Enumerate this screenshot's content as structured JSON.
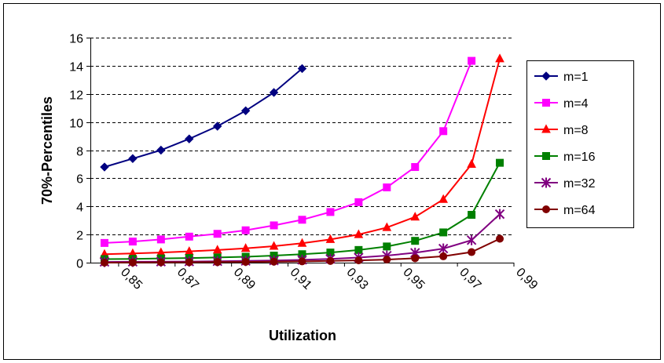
{
  "chart_data": {
    "type": "line",
    "title": "",
    "xlabel": "Utilization",
    "ylabel": "70%-Percentiles",
    "x": [
      0.845,
      0.855,
      0.865,
      0.875,
      0.885,
      0.895,
      0.905,
      0.915,
      0.925,
      0.935,
      0.945,
      0.955,
      0.965,
      0.975,
      0.985
    ],
    "x_tick_values": [
      0.85,
      0.87,
      0.89,
      0.91,
      0.93,
      0.95,
      0.97,
      0.99
    ],
    "x_tick_labels": [
      "0,85",
      "0,87",
      "0,89",
      "0,91",
      "0,93",
      "0,95",
      "0,97",
      "0,99"
    ],
    "xlim": [
      0.84,
      0.99
    ],
    "ylim": [
      0,
      16
    ],
    "y_ticks": [
      0,
      2,
      4,
      6,
      8,
      10,
      12,
      14,
      16
    ],
    "grid": "horizontal dashed",
    "legend_position": "right",
    "series": [
      {
        "name": "m=1",
        "color": "#000080",
        "marker": "diamond",
        "values": [
          6.8,
          7.4,
          8.0,
          8.8,
          9.7,
          10.8,
          12.1,
          13.8,
          null,
          null,
          null,
          null,
          null,
          null,
          null
        ]
      },
      {
        "name": "m=4",
        "color": "#FF00FF",
        "marker": "square",
        "values": [
          1.4,
          1.5,
          1.65,
          1.85,
          2.05,
          2.3,
          2.65,
          3.05,
          3.6,
          4.3,
          5.35,
          6.8,
          9.35,
          14.35,
          null
        ]
      },
      {
        "name": "m=8",
        "color": "#FF0000",
        "marker": "triangle",
        "values": [
          0.6,
          0.65,
          0.72,
          0.8,
          0.9,
          1.02,
          1.17,
          1.38,
          1.65,
          2.0,
          2.5,
          3.25,
          4.5,
          7.0,
          14.5
        ]
      },
      {
        "name": "m=16",
        "color": "#008000",
        "marker": "square",
        "values": [
          0.25,
          0.27,
          0.3,
          0.33,
          0.37,
          0.42,
          0.5,
          0.6,
          0.72,
          0.9,
          1.15,
          1.55,
          2.15,
          3.4,
          7.1
        ]
      },
      {
        "name": "m=32",
        "color": "#800080",
        "marker": "asterisk",
        "values": [
          0.05,
          0.06,
          0.07,
          0.08,
          0.1,
          0.12,
          0.15,
          0.2,
          0.27,
          0.36,
          0.5,
          0.7,
          1.0,
          1.6,
          3.45
        ]
      },
      {
        "name": "m=64",
        "color": "#800000",
        "marker": "circle",
        "values": [
          0.0,
          0.01,
          0.02,
          0.03,
          0.04,
          0.05,
          0.07,
          0.09,
          0.12,
          0.16,
          0.22,
          0.31,
          0.45,
          0.75,
          1.7
        ]
      }
    ]
  }
}
